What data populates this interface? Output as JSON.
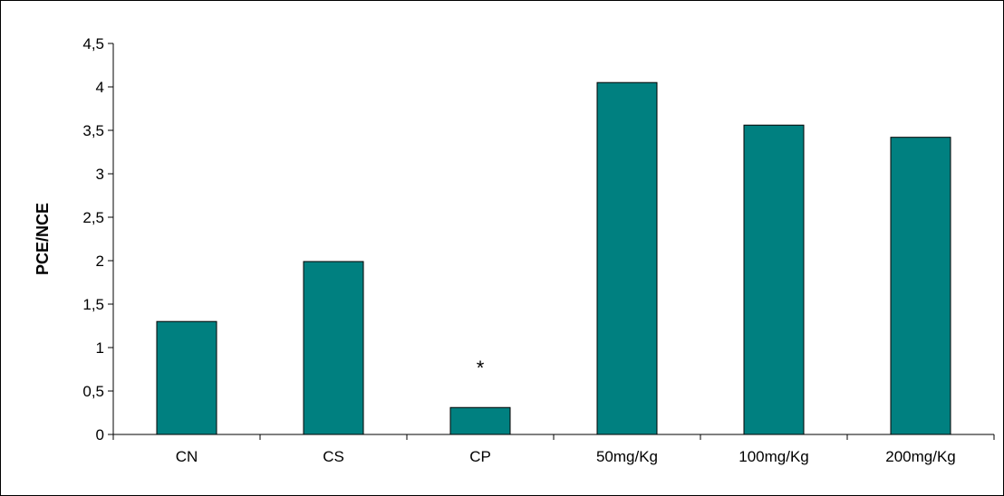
{
  "chart_data": {
    "type": "bar",
    "title": "",
    "xlabel": "",
    "ylabel": "PCE/NCE",
    "categories": [
      "CN",
      "CS",
      "CP",
      "50mg/Kg",
      "100mg/Kg",
      "200mg/Kg"
    ],
    "values": [
      1.3,
      1.99,
      0.31,
      4.05,
      3.56,
      3.42
    ],
    "ylim": [
      0,
      4.5
    ],
    "yticks": [
      0,
      0.5,
      1,
      1.5,
      2,
      2.5,
      3,
      3.5,
      4,
      4.5
    ],
    "ytick_labels": [
      "0",
      "0,5",
      "1",
      "1,5",
      "2",
      "2,5",
      "3",
      "3,5",
      "4",
      "4,5"
    ],
    "annotations": [
      {
        "category": "CP",
        "text": "*"
      }
    ],
    "bar_color": "#008080",
    "grid": false,
    "legend": "none"
  }
}
